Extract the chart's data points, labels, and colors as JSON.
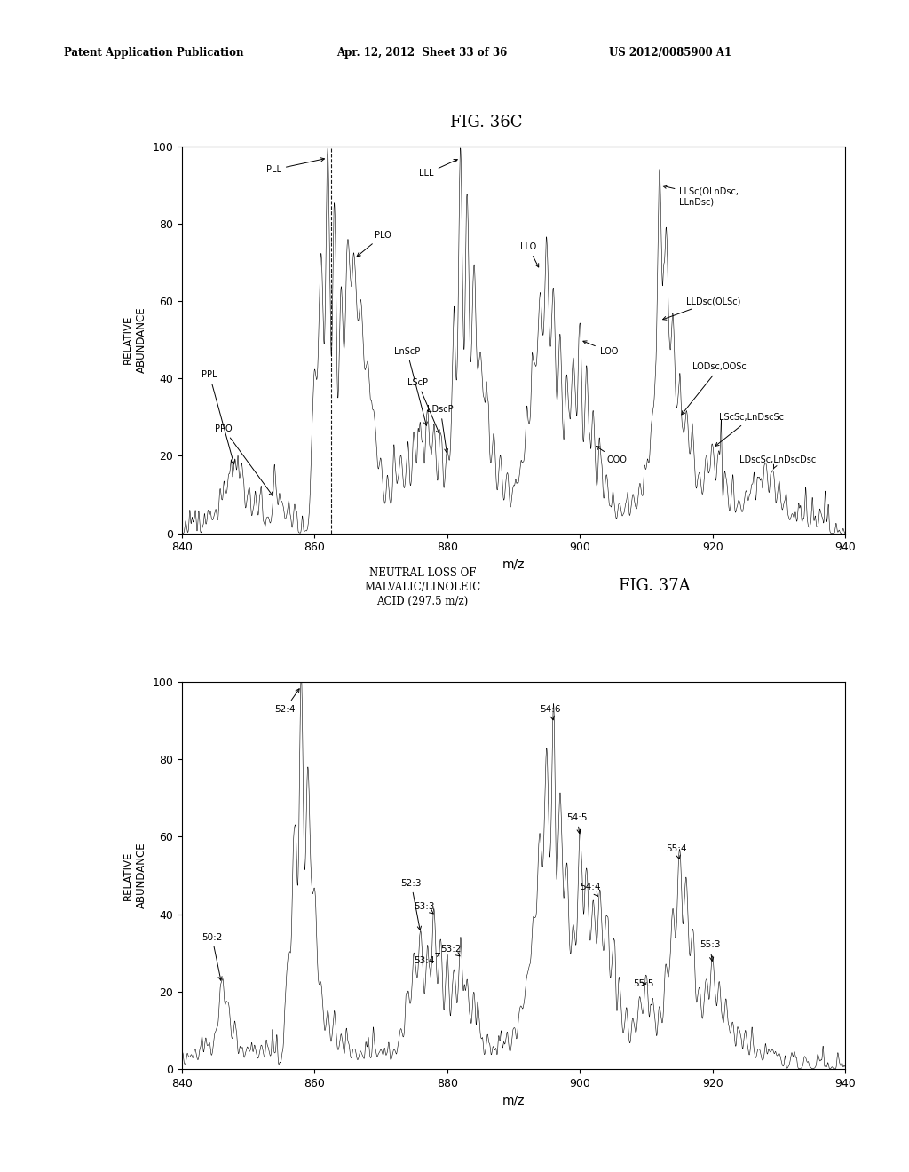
{
  "fig1_title": "FIG. 36C",
  "fig2_title": "FIG. 37A",
  "fig2_subtitle": "NEUTRAL LOSS OF\nMALVALIC/LINOLEIC\nACID (297.5 m/z)",
  "header_left": "Patent Application Publication",
  "header_mid": "Apr. 12, 2012  Sheet 33 of 36",
  "header_right": "US 2012/0085900 A1",
  "xlabel": "m/z",
  "ylabel": "RELATIVE\nABUNDANCE",
  "xlim": [
    840,
    940
  ],
  "ylim": [
    0,
    100
  ],
  "xticks": [
    840,
    860,
    880,
    900,
    920,
    940
  ],
  "yticks": [
    0,
    20,
    40,
    60,
    80,
    100
  ],
  "bg_color": "#ffffff",
  "line_color": "#000000"
}
